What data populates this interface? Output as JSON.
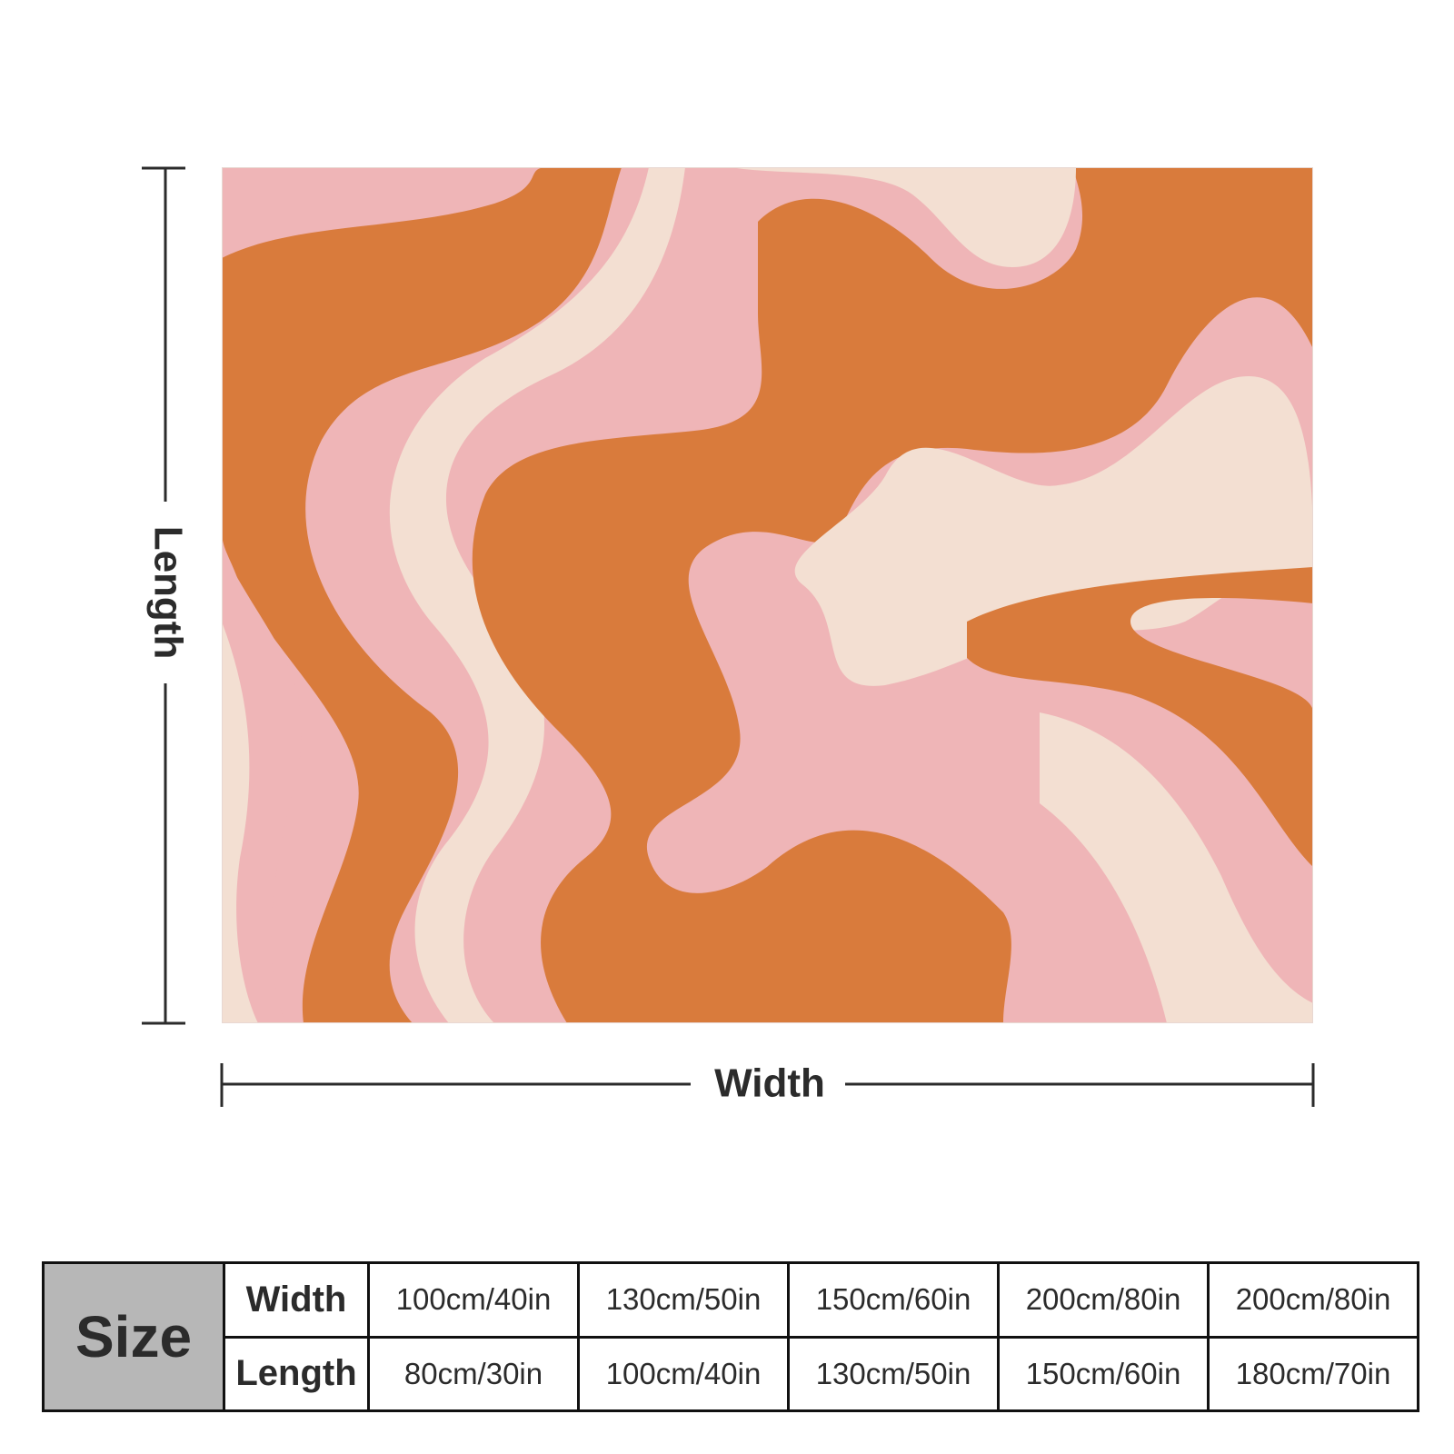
{
  "dimensions": {
    "length_label": "Length",
    "width_label": "Width"
  },
  "table": {
    "header": "Size",
    "rows": [
      {
        "label": "Width",
        "cells": [
          "100cm/40in",
          "130cm/50in",
          "150cm/60in",
          "200cm/80in",
          "200cm/80in"
        ]
      },
      {
        "label": "Length",
        "cells": [
          "80cm/30in",
          "100cm/40in",
          "130cm/50in",
          "150cm/60in",
          "180cm/70in"
        ]
      }
    ]
  }
}
